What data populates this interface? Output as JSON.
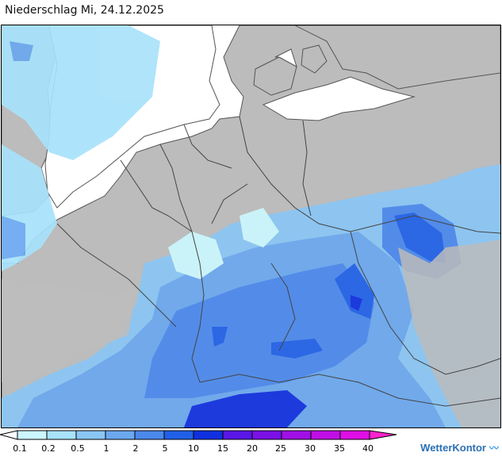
{
  "title": "Niederschlag Mi, 24.12.2025",
  "brand": {
    "name": "WetterKontor",
    "icon": "wave-logo-icon"
  },
  "legend": {
    "labels": [
      "0.1",
      "0.2",
      "0.5",
      "1",
      "2",
      "5",
      "10",
      "15",
      "20",
      "25",
      "30",
      "35",
      "40"
    ],
    "colors": [
      "#ffffff",
      "#ccf8ff",
      "#a8e2fb",
      "#8ac6f5",
      "#6ba8f0",
      "#4b88ec",
      "#2060e8",
      "#1030e0",
      "#5a16e6",
      "#7a10e6",
      "#a010e6",
      "#c00ee6",
      "#e00ee6",
      "#ff22cc"
    ]
  },
  "map_colors": {
    "land": "#bcbcbc",
    "water": "#ffffff",
    "border": "#444444"
  }
}
